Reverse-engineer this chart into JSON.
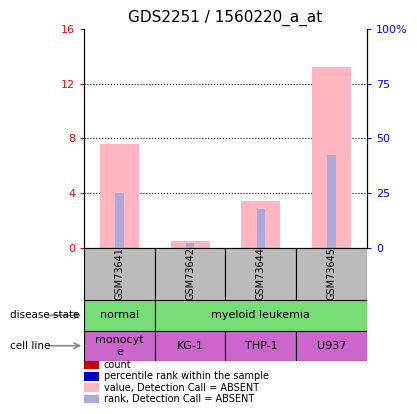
{
  "title": "GDS2251 / 1560220_a_at",
  "samples": [
    "GSM73641",
    "GSM73642",
    "GSM73644",
    "GSM73645"
  ],
  "pink_bars": [
    7.6,
    0.5,
    3.4,
    13.2
  ],
  "blue_bars": [
    4.0,
    0.3,
    2.8,
    6.8
  ],
  "left_yticks": [
    0,
    4,
    8,
    12,
    16
  ],
  "right_yticks": [
    0,
    25,
    50,
    75,
    100
  ],
  "right_yticklabels": [
    "0",
    "25",
    "50",
    "75",
    "100%"
  ],
  "ylim_left": [
    0,
    16
  ],
  "ylim_right": [
    0,
    100
  ],
  "cell_lines": [
    "monocyt\ne",
    "KG-1",
    "THP-1",
    "U937"
  ],
  "disease_state_label": "disease state",
  "cell_line_label": "cell line",
  "green_color": "#77DD77",
  "cell_line_color": "#CC66CC",
  "sample_bg_color": "#BBBBBB",
  "legend_items": [
    {
      "color": "#CC0000",
      "label": "count"
    },
    {
      "color": "#0000CC",
      "label": "percentile rank within the sample"
    },
    {
      "color": "#FFB6C1",
      "label": "value, Detection Call = ABSENT"
    },
    {
      "color": "#AAAADD",
      "label": "rank, Detection Call = ABSENT"
    }
  ],
  "pink_color": "#FFB6C1",
  "blue_color": "#AAAADD",
  "title_fontsize": 11
}
